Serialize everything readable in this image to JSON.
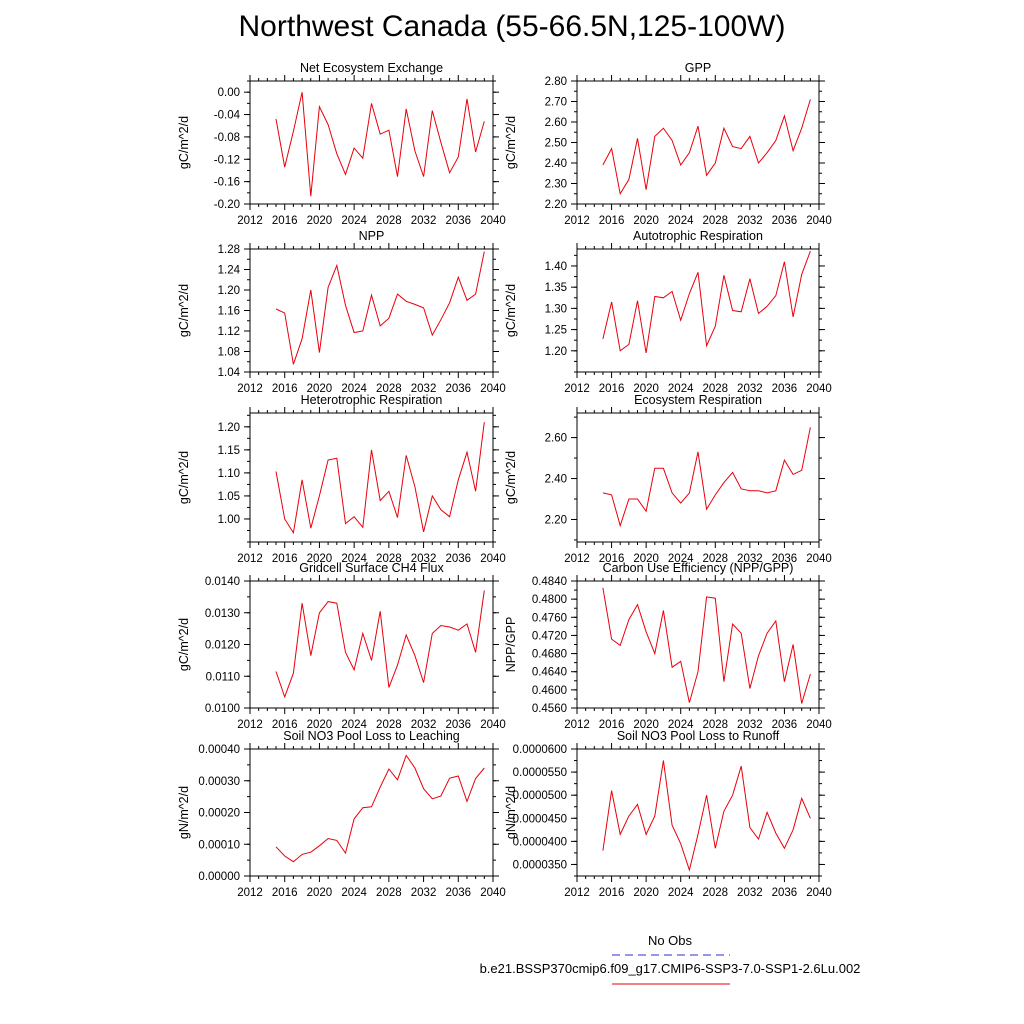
{
  "title": "Northwest Canada (55-66.5N,125-100W)",
  "colors": {
    "series": "#e8000b",
    "obs": "#2b2bd6",
    "axis": "#000000"
  },
  "legend": {
    "obs_label": "No Obs",
    "model_label": "b.e21.BSSP370cmip6.f09_g17.CMIP6-SSP3-7.0-SSP1-2.6Lu.002"
  },
  "chart_data": [
    {
      "type": "line",
      "title": "Net Ecosystem Exchange",
      "ylabel": "gC/m^2/d",
      "xlim": [
        2012,
        2040
      ],
      "ylim": [
        -0.2,
        0.02
      ],
      "xticks": [
        "2012",
        "2016",
        "2020",
        "2024",
        "2028",
        "2032",
        "2036",
        "2040"
      ],
      "yticks": [
        "0.00",
        "-0.04",
        "-0.08",
        "-0.12",
        "-0.16",
        "-0.20"
      ],
      "x": [
        2015,
        2016,
        2017,
        2018,
        2019,
        2020,
        2021,
        2022,
        2023,
        2024,
        2025,
        2026,
        2027,
        2028,
        2029,
        2030,
        2031,
        2032,
        2033,
        2034,
        2035,
        2036,
        2037,
        2038,
        2039
      ],
      "values": [
        -0.048,
        -0.134,
        -0.07,
        0.0,
        -0.186,
        -0.026,
        -0.058,
        -0.11,
        -0.147,
        -0.1,
        -0.118,
        -0.02,
        -0.075,
        -0.068,
        -0.151,
        -0.03,
        -0.105,
        -0.151,
        -0.033,
        -0.09,
        -0.144,
        -0.116,
        -0.012,
        -0.107,
        -0.052
      ]
    },
    {
      "type": "line",
      "title": "GPP",
      "ylabel": "gC/m^2/d",
      "xlim": [
        2012,
        2040
      ],
      "ylim": [
        2.2,
        2.8
      ],
      "xticks": [
        "2012",
        "2016",
        "2020",
        "2024",
        "2028",
        "2032",
        "2036",
        "2040"
      ],
      "yticks": [
        "2.80",
        "2.70",
        "2.60",
        "2.50",
        "2.40",
        "2.30",
        "2.20"
      ],
      "x": [
        2015,
        2016,
        2017,
        2018,
        2019,
        2020,
        2021,
        2022,
        2023,
        2024,
        2025,
        2026,
        2027,
        2028,
        2029,
        2030,
        2031,
        2032,
        2033,
        2034,
        2035,
        2036,
        2037,
        2038,
        2039
      ],
      "values": [
        2.39,
        2.47,
        2.25,
        2.32,
        2.52,
        2.27,
        2.53,
        2.57,
        2.51,
        2.39,
        2.45,
        2.58,
        2.34,
        2.4,
        2.57,
        2.48,
        2.47,
        2.53,
        2.4,
        2.45,
        2.51,
        2.63,
        2.46,
        2.57,
        2.71
      ]
    },
    {
      "type": "line",
      "title": "NPP",
      "ylabel": "gC/m^2/d",
      "xlim": [
        2012,
        2040
      ],
      "ylim": [
        1.04,
        1.28
      ],
      "xticks": [
        "2012",
        "2016",
        "2020",
        "2024",
        "2028",
        "2032",
        "2036",
        "2040"
      ],
      "yticks": [
        "1.28",
        "1.24",
        "1.20",
        "1.16",
        "1.12",
        "1.08",
        "1.04"
      ],
      "x": [
        2015,
        2016,
        2017,
        2018,
        2019,
        2020,
        2021,
        2022,
        2023,
        2024,
        2025,
        2026,
        2027,
        2028,
        2029,
        2030,
        2031,
        2032,
        2033,
        2034,
        2035,
        2036,
        2037,
        2038,
        2039
      ],
      "values": [
        1.163,
        1.155,
        1.055,
        1.105,
        1.2,
        1.078,
        1.205,
        1.248,
        1.17,
        1.117,
        1.12,
        1.19,
        1.13,
        1.145,
        1.192,
        1.178,
        1.172,
        1.165,
        1.112,
        1.142,
        1.175,
        1.225,
        1.18,
        1.192,
        1.275
      ]
    },
    {
      "type": "line",
      "title": "Autotrophic Respiration",
      "ylabel": "gC/m^2/d",
      "xlim": [
        2012,
        2040
      ],
      "ylim": [
        1.15,
        1.44
      ],
      "xticks": [
        "2012",
        "2016",
        "2020",
        "2024",
        "2028",
        "2032",
        "2036",
        "2040"
      ],
      "yticks": [
        "1.40",
        "1.35",
        "1.30",
        "1.25",
        "1.20"
      ],
      "x": [
        2015,
        2016,
        2017,
        2018,
        2019,
        2020,
        2021,
        2022,
        2023,
        2024,
        2025,
        2026,
        2027,
        2028,
        2029,
        2030,
        2031,
        2032,
        2033,
        2034,
        2035,
        2036,
        2037,
        2038,
        2039
      ],
      "values": [
        1.228,
        1.315,
        1.2,
        1.215,
        1.318,
        1.195,
        1.328,
        1.325,
        1.34,
        1.272,
        1.335,
        1.385,
        1.212,
        1.258,
        1.378,
        1.295,
        1.292,
        1.37,
        1.288,
        1.305,
        1.33,
        1.41,
        1.28,
        1.38,
        1.435
      ]
    },
    {
      "type": "line",
      "title": "Heterotrophic Respiration",
      "ylabel": "gC/m^2/d",
      "xlim": [
        2012,
        2040
      ],
      "ylim": [
        0.95,
        1.23
      ],
      "xticks": [
        "2012",
        "2016",
        "2020",
        "2024",
        "2028",
        "2032",
        "2036",
        "2040"
      ],
      "yticks": [
        "1.20",
        "1.15",
        "1.10",
        "1.05",
        "1.00"
      ],
      "x": [
        2015,
        2016,
        2017,
        2018,
        2019,
        2020,
        2021,
        2022,
        2023,
        2024,
        2025,
        2026,
        2027,
        2028,
        2029,
        2030,
        2031,
        2032,
        2033,
        2034,
        2035,
        2036,
        2037,
        2038,
        2039
      ],
      "values": [
        1.103,
        1.0,
        0.97,
        1.085,
        0.98,
        1.05,
        1.128,
        1.132,
        0.99,
        1.005,
        0.982,
        1.15,
        1.04,
        1.06,
        1.003,
        1.138,
        1.07,
        0.972,
        1.05,
        1.02,
        1.005,
        1.085,
        1.145,
        1.06,
        1.21
      ]
    },
    {
      "type": "line",
      "title": "Ecosystem Respiration",
      "ylabel": "gC/m^2/d",
      "xlim": [
        2012,
        2040
      ],
      "ylim": [
        2.09,
        2.72
      ],
      "xticks": [
        "2012",
        "2016",
        "2020",
        "2024",
        "2028",
        "2032",
        "2036",
        "2040"
      ],
      "yticks": [
        "2.60",
        "2.40",
        "2.20"
      ],
      "x": [
        2015,
        2016,
        2017,
        2018,
        2019,
        2020,
        2021,
        2022,
        2023,
        2024,
        2025,
        2026,
        2027,
        2028,
        2029,
        2030,
        2031,
        2032,
        2033,
        2034,
        2035,
        2036,
        2037,
        2038,
        2039
      ],
      "values": [
        2.33,
        2.32,
        2.17,
        2.3,
        2.3,
        2.24,
        2.45,
        2.45,
        2.33,
        2.28,
        2.33,
        2.53,
        2.25,
        2.32,
        2.38,
        2.43,
        2.35,
        2.34,
        2.34,
        2.33,
        2.34,
        2.49,
        2.42,
        2.44,
        2.65
      ]
    },
    {
      "type": "line",
      "title": "Gridcell Surface CH4 Flux",
      "ylabel": "gC/m^2/d",
      "xlim": [
        2012,
        2040
      ],
      "ylim": [
        0.01,
        0.014
      ],
      "xticks": [
        "2012",
        "2016",
        "2020",
        "2024",
        "2028",
        "2032",
        "2036",
        "2040"
      ],
      "yticks": [
        "0.0140",
        "0.0130",
        "0.0120",
        "0.0110",
        "0.0100"
      ],
      "x": [
        2015,
        2016,
        2017,
        2018,
        2019,
        2020,
        2021,
        2022,
        2023,
        2024,
        2025,
        2026,
        2027,
        2028,
        2029,
        2030,
        2031,
        2032,
        2033,
        2034,
        2035,
        2036,
        2037,
        2038,
        2039
      ],
      "values": [
        0.01115,
        0.01035,
        0.0111,
        0.0133,
        0.01165,
        0.013,
        0.01335,
        0.0133,
        0.01175,
        0.0112,
        0.01235,
        0.0115,
        0.01305,
        0.01065,
        0.01135,
        0.0123,
        0.01165,
        0.0108,
        0.01235,
        0.0126,
        0.01255,
        0.01245,
        0.01265,
        0.01175,
        0.0137
      ]
    },
    {
      "type": "line",
      "title": "Carbon Use Efficiency (NPP/GPP)",
      "ylabel": "NPP/GPP",
      "xlim": [
        2012,
        2040
      ],
      "ylim": [
        0.456,
        0.484
      ],
      "xticks": [
        "2012",
        "2016",
        "2020",
        "2024",
        "2028",
        "2032",
        "2036",
        "2040"
      ],
      "yticks": [
        "0.4840",
        "0.4800",
        "0.4760",
        "0.4720",
        "0.4680",
        "0.4640",
        "0.4600",
        "0.4560"
      ],
      "x": [
        2015,
        2016,
        2017,
        2018,
        2019,
        2020,
        2021,
        2022,
        2023,
        2024,
        2025,
        2026,
        2027,
        2028,
        2029,
        2030,
        2031,
        2032,
        2033,
        2034,
        2035,
        2036,
        2037,
        2038,
        2039
      ],
      "values": [
        0.4825,
        0.4712,
        0.4698,
        0.4755,
        0.4788,
        0.4728,
        0.468,
        0.4775,
        0.465,
        0.4663,
        0.4572,
        0.464,
        0.4805,
        0.4802,
        0.4618,
        0.4745,
        0.4725,
        0.4603,
        0.4675,
        0.4725,
        0.4752,
        0.4618,
        0.47,
        0.457,
        0.4635
      ]
    },
    {
      "type": "line",
      "title": "Soil NO3 Pool Loss to Leaching",
      "ylabel": "gN/m^2/d",
      "xlim": [
        2012,
        2040
      ],
      "ylim": [
        0.0,
        0.0004
      ],
      "xticks": [
        "2012",
        "2016",
        "2020",
        "2024",
        "2028",
        "2032",
        "2036",
        "2040"
      ],
      "yticks": [
        "0.00040",
        "0.00030",
        "0.00020",
        "0.00010",
        "0.00000"
      ],
      "x": [
        2015,
        2016,
        2017,
        2018,
        2019,
        2020,
        2021,
        2022,
        2023,
        2024,
        2025,
        2026,
        2027,
        2028,
        2029,
        2030,
        2031,
        2032,
        2033,
        2034,
        2035,
        2036,
        2037,
        2038,
        2039
      ],
      "values": [
        9.2e-05,
        6.3e-05,
        4.5e-05,
        6.8e-05,
        7.5e-05,
        9.5e-05,
        0.000118,
        0.000112,
        7.2e-05,
        0.00018,
        0.000215,
        0.000218,
        0.00028,
        0.000337,
        0.000303,
        0.00038,
        0.00034,
        0.000275,
        0.000243,
        0.000252,
        0.000308,
        0.000315,
        0.000235,
        0.000307,
        0.00034
      ]
    },
    {
      "type": "line",
      "title": "Soil NO3 Pool Loss to Runoff",
      "ylabel": "gN/m^2/d",
      "xlim": [
        2012,
        2040
      ],
      "ylim": [
        3.25e-05,
        6e-05
      ],
      "xticks": [
        "2012",
        "2016",
        "2020",
        "2024",
        "2028",
        "2032",
        "2036",
        "2040"
      ],
      "yticks": [
        "0.0000600",
        "0.0000550",
        "0.0000500",
        "0.0000450",
        "0.0000400",
        "0.0000350"
      ],
      "x": [
        2015,
        2016,
        2017,
        2018,
        2019,
        2020,
        2021,
        2022,
        2023,
        2024,
        2025,
        2026,
        2027,
        2028,
        2029,
        2030,
        2031,
        2032,
        2033,
        2034,
        2035,
        2036,
        2037,
        2038,
        2039
      ],
      "values": [
        3.8e-05,
        5.1e-05,
        4.15e-05,
        4.55e-05,
        4.8e-05,
        4.15e-05,
        4.55e-05,
        5.75e-05,
        4.35e-05,
        3.95e-05,
        3.38e-05,
        4.15e-05,
        5e-05,
        3.85e-05,
        4.65e-05,
        5e-05,
        5.63e-05,
        4.3e-05,
        4.05e-05,
        4.63e-05,
        4.18e-05,
        3.85e-05,
        4.25e-05,
        4.93e-05,
        4.5e-05
      ]
    }
  ]
}
